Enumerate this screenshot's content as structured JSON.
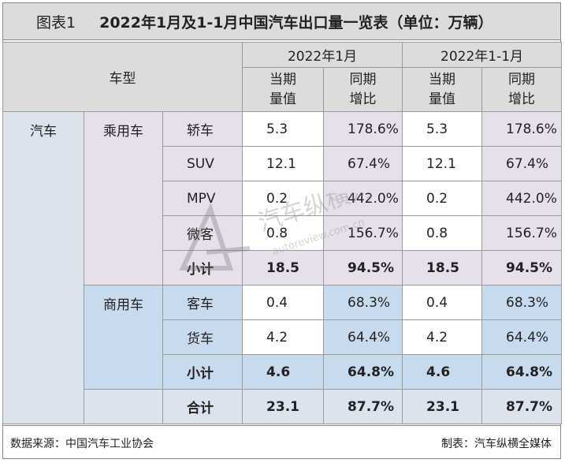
{
  "title": {
    "label": "图表1",
    "text": "2022年1月及1-1月中国汽车出口量一览表（单位：万辆）"
  },
  "header": {
    "vehicle_type": "车型",
    "period1": "2022年1月",
    "period2": "2022年1-1月",
    "current_l1": "当期",
    "current_l2": "量值",
    "yoy_l1": "同期",
    "yoy_l2": "增比"
  },
  "category": "汽车",
  "groups": [
    {
      "name": "乘用车",
      "rows": [
        {
          "type": "轿车",
          "v1": "5.3",
          "g1": "178.6%",
          "v2": "5.3",
          "g2": "178.6%"
        },
        {
          "type": "SUV",
          "v1": "12.1",
          "g1": "67.4%",
          "v2": "12.1",
          "g2": "67.4%"
        },
        {
          "type": "MPV",
          "v1": "0.2",
          "g1": "442.0%",
          "v2": "0.2",
          "g2": "442.0%"
        },
        {
          "type": "微客",
          "v1": "0.8",
          "g1": "156.7%",
          "v2": "0.8",
          "g2": "156.7%"
        }
      ],
      "subtotal": {
        "label": "小计",
        "v1": "18.5",
        "g1": "94.5%",
        "v2": "18.5",
        "g2": "94.5%"
      }
    },
    {
      "name": "商用车",
      "rows": [
        {
          "type": "客车",
          "v1": "0.4",
          "g1": "68.3%",
          "v2": "0.4",
          "g2": "68.3%"
        },
        {
          "type": "货车",
          "v1": "4.2",
          "g1": "64.4%",
          "v2": "4.2",
          "g2": "64.4%"
        }
      ],
      "subtotal": {
        "label": "小计",
        "v1": "4.6",
        "g1": "64.8%",
        "v2": "4.6",
        "g2": "64.8%"
      }
    }
  ],
  "total": {
    "label": "合计",
    "v1": "23.1",
    "g1": "87.7%",
    "v2": "23.1",
    "g2": "87.7%"
  },
  "footer": {
    "source": "数据来源：中国汽车工业协会",
    "maker": "制表：汽车纵横全媒体"
  },
  "watermark": {
    "text_cn": "汽车纵横网",
    "text_url": "autoreview.com.cn"
  }
}
